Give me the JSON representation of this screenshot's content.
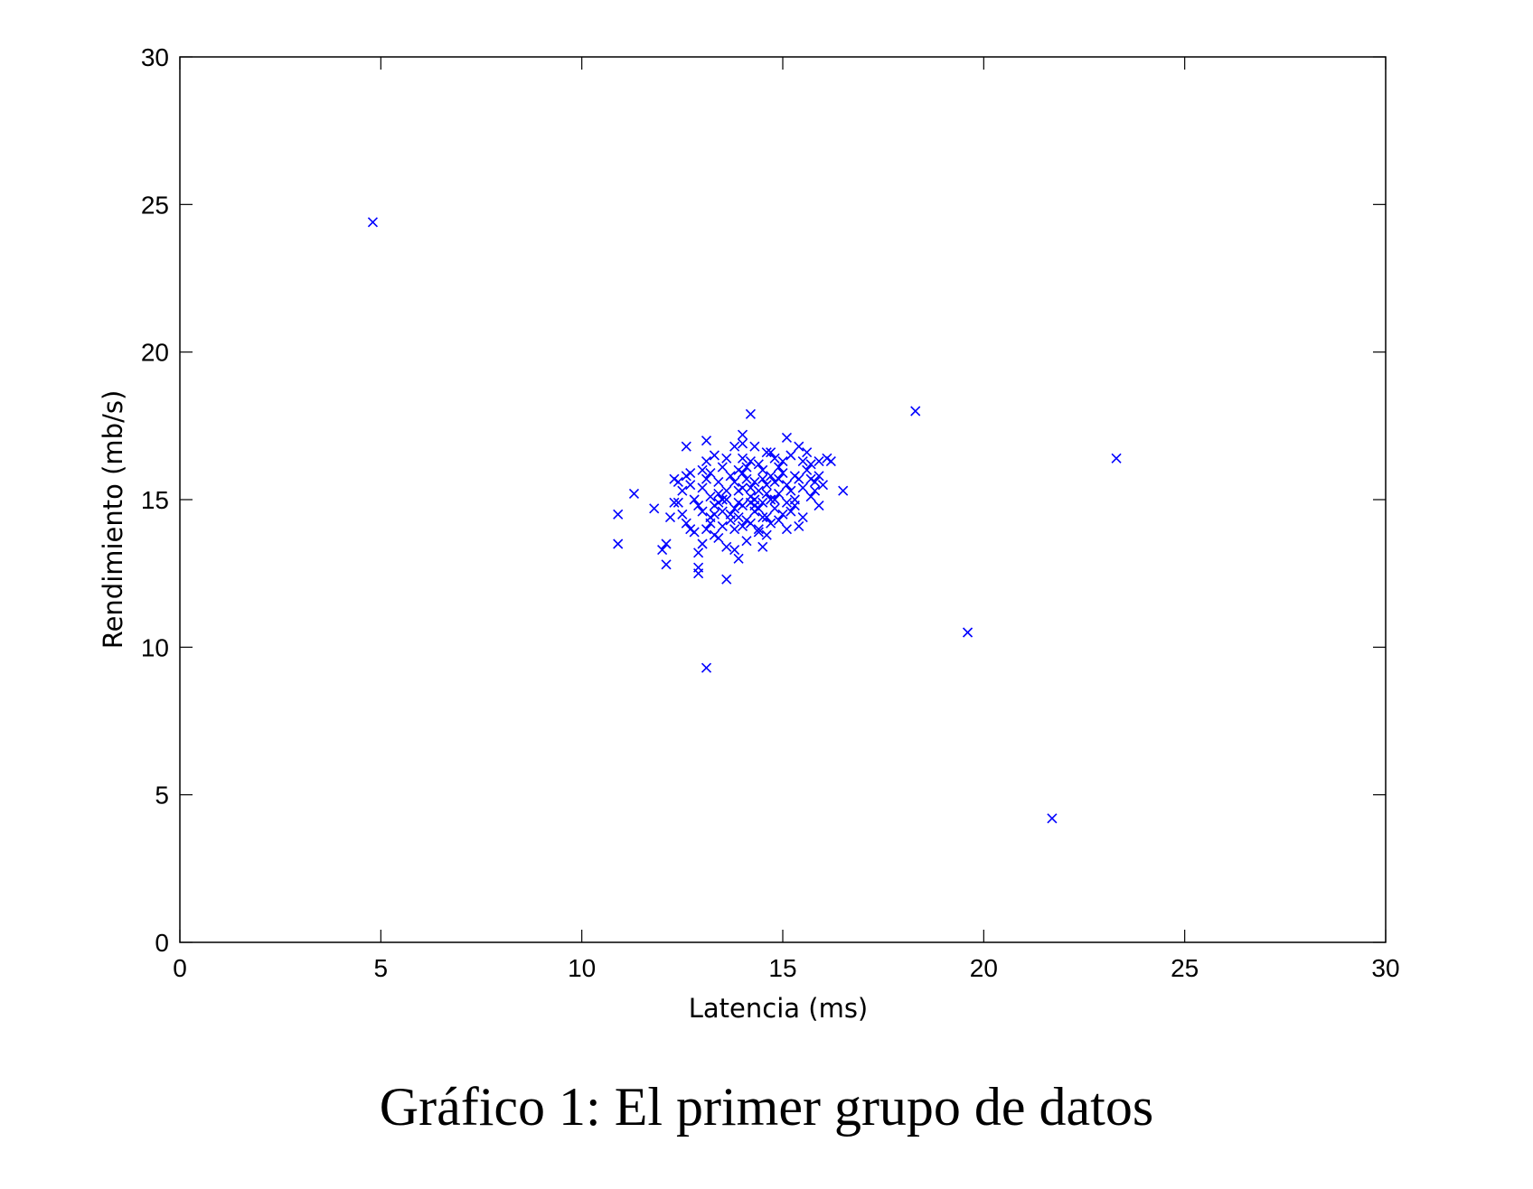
{
  "caption": "Gráfico 1: El primer grupo de datos",
  "chart_data": {
    "type": "scatter",
    "title": "",
    "xlabel": "Latencia (ms)",
    "ylabel": "Rendimiento (mb/s)",
    "xlim": [
      0,
      30
    ],
    "ylim": [
      0,
      30
    ],
    "xticks": [
      0,
      5,
      10,
      15,
      20,
      25,
      30
    ],
    "yticks": [
      0,
      5,
      10,
      15,
      20,
      25,
      30
    ],
    "grid": false,
    "marker": "x",
    "marker_color": "#0000ff",
    "series": [
      {
        "points": [
          [
            4.8,
            24.4
          ],
          [
            18.3,
            18.0
          ],
          [
            23.3,
            16.4
          ],
          [
            19.6,
            10.5
          ],
          [
            21.7,
            4.2
          ],
          [
            13.1,
            9.3
          ],
          [
            10.9,
            14.5
          ],
          [
            10.9,
            13.5
          ],
          [
            11.3,
            15.2
          ],
          [
            11.8,
            14.7
          ],
          [
            12.0,
            13.3
          ],
          [
            12.1,
            12.8
          ],
          [
            12.1,
            13.5
          ],
          [
            12.2,
            14.4
          ],
          [
            12.3,
            15.7
          ],
          [
            12.5,
            15.3
          ],
          [
            12.6,
            16.8
          ],
          [
            12.7,
            15.9
          ],
          [
            12.9,
            12.5
          ],
          [
            12.9,
            13.2
          ],
          [
            12.9,
            12.7
          ],
          [
            13.1,
            17.0
          ],
          [
            13.1,
            16.3
          ],
          [
            13.2,
            14.2
          ],
          [
            13.3,
            13.8
          ],
          [
            13.6,
            12.3
          ],
          [
            13.8,
            13.3
          ],
          [
            13.9,
            13.0
          ],
          [
            14.0,
            16.9
          ],
          [
            14.0,
            17.2
          ],
          [
            14.2,
            17.9
          ],
          [
            14.5,
            13.4
          ],
          [
            14.6,
            16.6
          ],
          [
            15.1,
            17.1
          ],
          [
            15.4,
            16.8
          ],
          [
            15.7,
            16.2
          ],
          [
            15.9,
            14.8
          ],
          [
            16.1,
            16.4
          ],
          [
            16.5,
            15.3
          ],
          [
            12.4,
            14.9
          ],
          [
            12.6,
            14.2
          ],
          [
            12.8,
            15.0
          ],
          [
            13.0,
            14.6
          ],
          [
            13.0,
            15.4
          ],
          [
            13.2,
            15.9
          ],
          [
            13.3,
            14.8
          ],
          [
            13.4,
            15.2
          ],
          [
            13.5,
            14.1
          ],
          [
            13.5,
            16.1
          ],
          [
            13.6,
            15.0
          ],
          [
            13.7,
            14.5
          ],
          [
            13.8,
            15.6
          ],
          [
            13.8,
            14.0
          ],
          [
            13.9,
            15.3
          ],
          [
            14.0,
            14.8
          ],
          [
            14.0,
            15.9
          ],
          [
            14.1,
            14.3
          ],
          [
            14.2,
            15.1
          ],
          [
            14.2,
            16.3
          ],
          [
            14.3,
            14.6
          ],
          [
            14.3,
            15.6
          ],
          [
            14.4,
            14.0
          ],
          [
            14.4,
            15.3
          ],
          [
            14.5,
            16.0
          ],
          [
            14.5,
            14.9
          ],
          [
            14.6,
            15.5
          ],
          [
            14.7,
            14.2
          ],
          [
            14.7,
            15.8
          ],
          [
            14.8,
            14.7
          ],
          [
            14.8,
            16.4
          ],
          [
            14.9,
            15.2
          ],
          [
            15.0,
            14.5
          ],
          [
            15.0,
            15.9
          ],
          [
            15.1,
            14.0
          ],
          [
            15.2,
            15.3
          ],
          [
            15.2,
            16.5
          ],
          [
            15.3,
            14.8
          ],
          [
            15.4,
            15.7
          ],
          [
            15.5,
            14.4
          ],
          [
            15.6,
            16.0
          ],
          [
            15.7,
            15.1
          ],
          [
            15.8,
            15.6
          ],
          [
            15.9,
            16.3
          ],
          [
            16.0,
            15.5
          ],
          [
            13.1,
            14.0
          ],
          [
            13.4,
            13.7
          ],
          [
            13.6,
            16.4
          ],
          [
            13.9,
            14.4
          ],
          [
            14.1,
            13.6
          ],
          [
            14.3,
            16.8
          ],
          [
            14.6,
            13.8
          ],
          [
            14.9,
            16.1
          ],
          [
            12.8,
            13.9
          ],
          [
            13.2,
            15.1
          ],
          [
            13.7,
            15.8
          ],
          [
            14.0,
            15.4
          ],
          [
            14.4,
            14.7
          ],
          [
            14.8,
            15.0
          ],
          [
            15.3,
            15.0
          ],
          [
            13.5,
            14.6
          ],
          [
            13.9,
            14.9
          ],
          [
            14.2,
            14.9
          ],
          [
            14.6,
            15.2
          ],
          [
            13.3,
            16.5
          ],
          [
            14.1,
            16.1
          ],
          [
            12.5,
            14.5
          ],
          [
            12.7,
            15.5
          ],
          [
            13.0,
            13.5
          ],
          [
            13.6,
            13.4
          ],
          [
            14.2,
            14.2
          ],
          [
            14.7,
            16.6
          ],
          [
            15.4,
            14.1
          ],
          [
            15.9,
            15.8
          ],
          [
            13.8,
            16.8
          ],
          [
            14.4,
            16.2
          ],
          [
            15.1,
            14.9
          ],
          [
            15.6,
            16.6
          ],
          [
            13.2,
            14.4
          ],
          [
            13.4,
            15.6
          ],
          [
            13.7,
            14.3
          ],
          [
            14.0,
            14.1
          ],
          [
            14.3,
            15.0
          ],
          [
            14.5,
            15.7
          ],
          [
            14.9,
            14.3
          ],
          [
            15.2,
            14.6
          ],
          [
            15.5,
            15.4
          ],
          [
            12.9,
            14.8
          ],
          [
            13.1,
            15.7
          ],
          [
            13.6,
            15.3
          ],
          [
            14.1,
            15.7
          ],
          [
            14.6,
            14.4
          ],
          [
            14.8,
            15.6
          ],
          [
            15.0,
            16.3
          ],
          [
            15.7,
            15.7
          ],
          [
            16.2,
            16.3
          ],
          [
            12.3,
            14.9
          ],
          [
            12.6,
            15.8
          ],
          [
            13.3,
            14.5
          ],
          [
            13.8,
            14.7
          ],
          [
            14.2,
            15.4
          ],
          [
            14.5,
            14.4
          ],
          [
            15.1,
            15.5
          ],
          [
            15.5,
            16.3
          ],
          [
            13.5,
            15.0
          ],
          [
            14.0,
            16.4
          ],
          [
            14.7,
            15.0
          ],
          [
            13.0,
            16.0
          ],
          [
            13.4,
            14.9
          ],
          [
            14.3,
            14.8
          ],
          [
            14.9,
            15.7
          ],
          [
            15.3,
            15.8
          ],
          [
            12.4,
            15.6
          ],
          [
            12.7,
            14.0
          ],
          [
            13.9,
            16.0
          ],
          [
            14.4,
            13.9
          ],
          [
            15.8,
            15.3
          ]
        ]
      }
    ]
  }
}
